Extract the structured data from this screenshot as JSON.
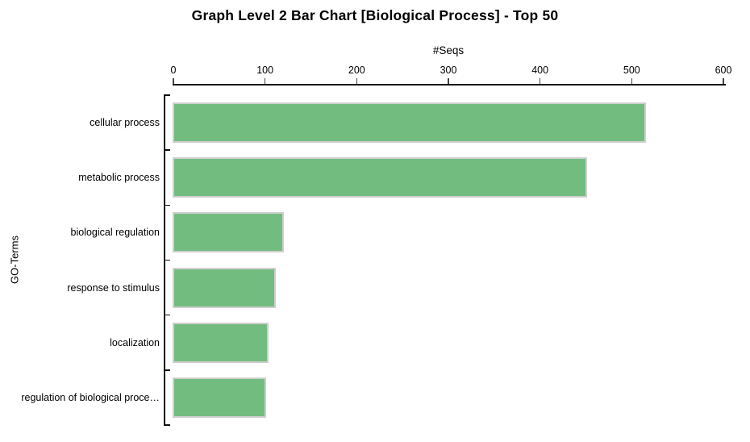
{
  "chart_data": {
    "type": "bar",
    "orientation": "horizontal",
    "title": "Graph Level 2 Bar Chart [Biological Process] - Top 50",
    "xlabel": "#Seqs",
    "ylabel": "GO-Terms",
    "categories": [
      "cellular process",
      "metabolic process",
      "biological regulation",
      "response to stimulus",
      "localization",
      "regulation of biological proce…"
    ],
    "values": [
      515,
      450,
      120,
      111,
      103,
      100
    ],
    "xlim": [
      0,
      600
    ],
    "xticks": [
      0,
      100,
      200,
      300,
      400,
      500,
      600
    ],
    "grid": false,
    "legend_position": "none",
    "colors": {
      "bar_fill": "#73bc80",
      "bar_border": "#cfcfcf",
      "axis": "#111111",
      "text": "#000000",
      "background": "#ffffff"
    }
  }
}
